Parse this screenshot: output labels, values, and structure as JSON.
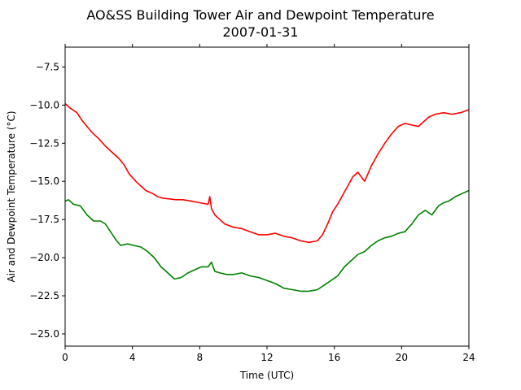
{
  "chart_data": {
    "type": "line",
    "title": "AO&SS Building Tower Air and Dewpoint Temperature",
    "subtitle": "2007-01-31",
    "xlabel": "Time (UTC)",
    "ylabel": "Air and Dewpoint Temperature (°C)",
    "xlim": [
      0,
      24
    ],
    "ylim": [
      -25.8,
      -6.2
    ],
    "xticks": [
      0,
      4,
      8,
      12,
      16,
      20,
      24
    ],
    "yticks": [
      -25.0,
      -22.5,
      -20.0,
      -17.5,
      -15.0,
      -12.5,
      -10.0,
      -7.5
    ],
    "ytick_labels": [
      "−25.0",
      "−22.5",
      "−20.0",
      "−17.5",
      "−15.0",
      "−12.5",
      "−10.0",
      "−7.5"
    ],
    "grid": false,
    "series": [
      {
        "color": "#ff0000",
        "x": [
          0,
          0.3,
          0.7,
          1.0,
          1.3,
          1.6,
          2.0,
          2.4,
          2.8,
          3.2,
          3.5,
          3.8,
          4.2,
          4.5,
          4.8,
          5.2,
          5.5,
          5.8,
          6.2,
          6.6,
          7.0,
          7.5,
          8.0,
          8.5,
          8.6,
          8.7,
          8.9,
          9.2,
          9.5,
          10.0,
          10.5,
          11.0,
          11.5,
          12.0,
          12.5,
          13.0,
          13.5,
          14.0,
          14.5,
          15.0,
          15.3,
          15.6,
          15.9,
          16.2,
          16.5,
          16.8,
          17.1,
          17.4,
          17.8,
          18.2,
          18.6,
          19.0,
          19.4,
          19.8,
          20.2,
          20.6,
          21.0,
          21.3,
          21.6,
          22.0,
          22.5,
          23.0,
          23.5,
          24.0
        ],
        "y": [
          -9.9,
          -10.2,
          -10.5,
          -11.0,
          -11.4,
          -11.8,
          -12.2,
          -12.7,
          -13.1,
          -13.5,
          -13.9,
          -14.5,
          -15.0,
          -15.3,
          -15.6,
          -15.8,
          -16.0,
          -16.1,
          -16.15,
          -16.2,
          -16.2,
          -16.3,
          -16.4,
          -16.5,
          -16.0,
          -16.8,
          -17.2,
          -17.5,
          -17.8,
          -18.0,
          -18.1,
          -18.3,
          -18.5,
          -18.5,
          -18.4,
          -18.6,
          -18.7,
          -18.9,
          -19.0,
          -18.9,
          -18.5,
          -17.8,
          -17.0,
          -16.5,
          -15.9,
          -15.3,
          -14.7,
          -14.4,
          -15.0,
          -14.0,
          -13.2,
          -12.5,
          -11.9,
          -11.4,
          -11.2,
          -11.3,
          -11.4,
          -11.1,
          -10.8,
          -10.6,
          -10.5,
          -10.6,
          -10.5,
          -10.3
        ]
      },
      {
        "color": "#008000",
        "x": [
          0,
          0.2,
          0.5,
          0.9,
          1.3,
          1.7,
          2.1,
          2.4,
          2.7,
          3.0,
          3.3,
          3.7,
          4.1,
          4.5,
          4.9,
          5.3,
          5.7,
          6.1,
          6.5,
          6.9,
          7.3,
          7.7,
          8.1,
          8.5,
          8.7,
          8.9,
          9.2,
          9.6,
          10.0,
          10.5,
          11.0,
          11.5,
          12.0,
          12.5,
          13.0,
          13.5,
          14.0,
          14.5,
          15.0,
          15.4,
          15.8,
          16.2,
          16.6,
          17.0,
          17.4,
          17.8,
          18.2,
          18.6,
          19.0,
          19.4,
          19.8,
          20.2,
          20.6,
          21.0,
          21.4,
          21.8,
          22.2,
          22.5,
          22.8,
          23.2,
          23.6,
          24.0
        ],
        "y": [
          -16.3,
          -16.2,
          -16.5,
          -16.6,
          -17.2,
          -17.6,
          -17.6,
          -17.8,
          -18.3,
          -18.8,
          -19.2,
          -19.1,
          -19.2,
          -19.3,
          -19.6,
          -20.0,
          -20.6,
          -21.0,
          -21.4,
          -21.3,
          -21.0,
          -20.8,
          -20.6,
          -20.6,
          -20.3,
          -20.9,
          -21.0,
          -21.1,
          -21.1,
          -21.0,
          -21.2,
          -21.3,
          -21.5,
          -21.7,
          -22.0,
          -22.1,
          -22.2,
          -22.2,
          -22.1,
          -21.8,
          -21.5,
          -21.2,
          -20.6,
          -20.2,
          -19.8,
          -19.6,
          -19.2,
          -18.9,
          -18.7,
          -18.6,
          -18.4,
          -18.3,
          -17.8,
          -17.2,
          -16.9,
          -17.2,
          -16.6,
          -16.4,
          -16.3,
          -16.0,
          -15.8,
          -15.6
        ]
      }
    ]
  }
}
